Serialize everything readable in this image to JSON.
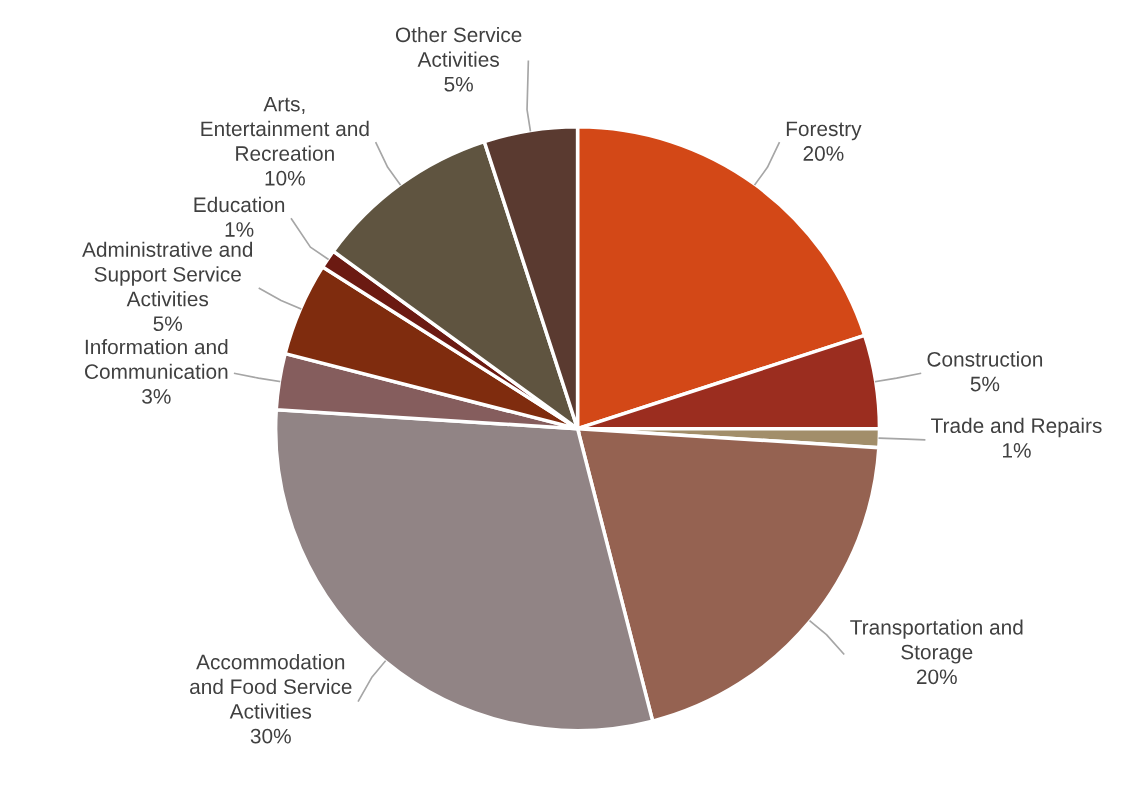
{
  "chart_data": {
    "type": "pie",
    "categories": [
      "Forestry",
      "Construction",
      "Trade and Repairs",
      "Transportation and\nStorage",
      "Accommodation\nand Food Service\nActivities",
      "Information and\nCommunication",
      "Administrative and\nSupport Service\nActivities",
      "Education",
      "Arts,\nEntertainment and\nRecreation",
      "Other Service\nActivities"
    ],
    "values": [
      20,
      5,
      1,
      20,
      30,
      3,
      5,
      1,
      10,
      5
    ],
    "value_labels": [
      "20%",
      "5%",
      "1%",
      "20%",
      "30%",
      "3%",
      "5%",
      "1%",
      "10%",
      "5%"
    ],
    "colors": [
      "#d34817",
      "#9b2d1f",
      "#a28e6a",
      "#956251",
      "#918485",
      "#855d5d",
      "#7f2c0e",
      "#6b1a12",
      "#5f5440",
      "#5a3a30"
    ],
    "legend": false
  }
}
